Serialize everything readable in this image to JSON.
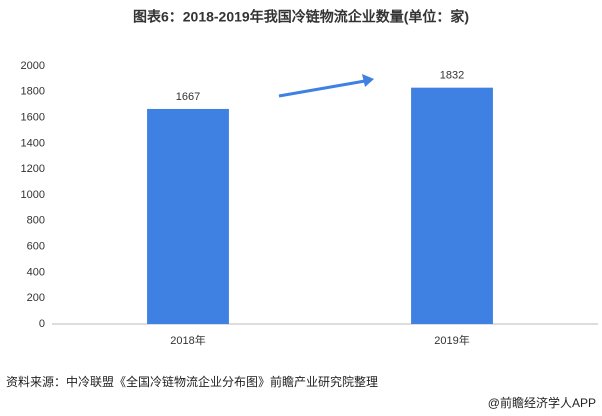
{
  "chart_data": {
    "type": "bar",
    "title": "图表6：2018-2019年我国冷链物流企业数量(单位：家)",
    "categories": [
      "2018年",
      "2019年"
    ],
    "values": [
      1667,
      1832
    ],
    "color": "#3f80e3",
    "ylim": [
      0,
      2000
    ],
    "yticks": [
      0,
      200,
      400,
      600,
      800,
      1000,
      1200,
      1400,
      1600,
      1800,
      2000
    ],
    "grid": false,
    "source": "资料来源：中冷联盟《全国冷链物流企业分布图》前瞻产业研究院整理",
    "footer": "@前瞻经济学人APP"
  }
}
